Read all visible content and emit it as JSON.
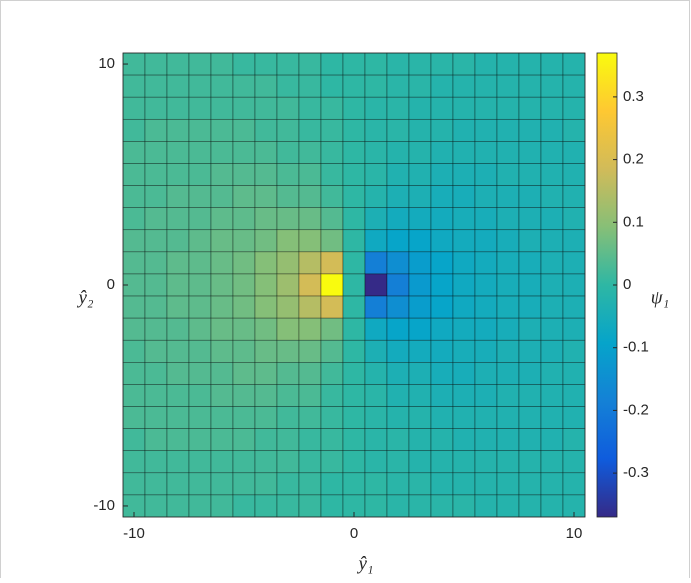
{
  "chart_data": {
    "type": "heatmap",
    "xlabel": "ŷ₁",
    "ylabel": "ŷ₂",
    "colorbar_label": "ψ₁",
    "x": [
      -10,
      -9,
      -8,
      -7,
      -6,
      -5,
      -4,
      -3,
      -2,
      -1,
      0,
      1,
      2,
      3,
      4,
      5,
      6,
      7,
      8,
      9,
      10
    ],
    "y": [
      10,
      9,
      8,
      7,
      6,
      5,
      4,
      3,
      2,
      1,
      0,
      -1,
      -2,
      -3,
      -4,
      -5,
      -6,
      -7,
      -8,
      -9,
      -10
    ],
    "z": [
      [
        0.02,
        0.02,
        0.02,
        0.02,
        0.02,
        0.01,
        0.01,
        0.01,
        0.01,
        0,
        0,
        0,
        -0.01,
        -0.01,
        -0.01,
        -0.01,
        -0.02,
        -0.02,
        -0.02,
        -0.02,
        -0.02
      ],
      [
        0.02,
        0.02,
        0.02,
        0.02,
        0.02,
        0.02,
        0.02,
        0.01,
        0.01,
        0,
        0,
        0,
        -0.01,
        -0.01,
        -0.02,
        -0.02,
        -0.02,
        -0.02,
        -0.02,
        -0.02,
        -0.02
      ],
      [
        0.02,
        0.02,
        0.02,
        0.02,
        0.02,
        0.02,
        0.02,
        0.02,
        0.01,
        0.01,
        0,
        -0.01,
        -0.01,
        -0.02,
        -0.02,
        -0.02,
        -0.02,
        -0.02,
        -0.02,
        -0.02,
        -0.02
      ],
      [
        0.02,
        0.03,
        0.03,
        0.03,
        0.03,
        0.03,
        0.02,
        0.02,
        0.01,
        0.01,
        0,
        -0.01,
        -0.01,
        -0.02,
        -0.02,
        -0.03,
        -0.03,
        -0.03,
        -0.03,
        -0.03,
        -0.02
      ],
      [
        0.03,
        0.03,
        0.03,
        0.03,
        0.03,
        0.03,
        0.03,
        0.02,
        0.02,
        0.01,
        0,
        -0.01,
        -0.02,
        -0.02,
        -0.03,
        -0.03,
        -0.03,
        -0.03,
        -0.03,
        -0.03,
        -0.03
      ],
      [
        0.03,
        0.03,
        0.03,
        0.03,
        0.04,
        0.04,
        0.04,
        0.03,
        0.03,
        0.01,
        0,
        -0.01,
        -0.03,
        -0.03,
        -0.04,
        -0.04,
        -0.04,
        -0.03,
        -0.03,
        -0.03,
        -0.03
      ],
      [
        0.03,
        0.03,
        0.04,
        0.04,
        0.04,
        0.05,
        0.05,
        0.04,
        0.04,
        0.02,
        0,
        -0.02,
        -0.04,
        -0.04,
        -0.05,
        -0.05,
        -0.04,
        -0.04,
        -0.04,
        -0.03,
        -0.03
      ],
      [
        0.03,
        0.04,
        0.04,
        0.04,
        0.05,
        0.05,
        0.06,
        0.06,
        0.06,
        0.04,
        0,
        -0.04,
        -0.06,
        -0.06,
        -0.06,
        -0.05,
        -0.05,
        -0.04,
        -0.04,
        -0.04,
        -0.03
      ],
      [
        0.04,
        0.04,
        0.04,
        0.05,
        0.06,
        0.06,
        0.07,
        0.09,
        0.09,
        0.07,
        0,
        -0.07,
        -0.09,
        -0.09,
        -0.07,
        -0.06,
        -0.06,
        -0.05,
        -0.04,
        -0.04,
        -0.04
      ],
      [
        0.04,
        0.04,
        0.05,
        0.05,
        0.06,
        0.07,
        0.09,
        0.11,
        0.15,
        0.19,
        0,
        -0.19,
        -0.15,
        -0.11,
        -0.09,
        -0.07,
        -0.06,
        -0.05,
        -0.05,
        -0.04,
        -0.04
      ],
      [
        0.04,
        0.04,
        0.05,
        0.05,
        0.06,
        0.07,
        0.09,
        0.12,
        0.19,
        0.37,
        0,
        -0.37,
        -0.19,
        -0.12,
        -0.09,
        -0.07,
        -0.06,
        -0.05,
        -0.05,
        -0.04,
        -0.04
      ],
      [
        0.04,
        0.04,
        0.05,
        0.05,
        0.06,
        0.07,
        0.09,
        0.11,
        0.15,
        0.19,
        0,
        -0.19,
        -0.15,
        -0.11,
        -0.09,
        -0.07,
        -0.06,
        -0.05,
        -0.05,
        -0.04,
        -0.04
      ],
      [
        0.04,
        0.04,
        0.04,
        0.05,
        0.06,
        0.06,
        0.07,
        0.09,
        0.09,
        0.07,
        0,
        -0.07,
        -0.09,
        -0.09,
        -0.07,
        -0.06,
        -0.06,
        -0.05,
        -0.04,
        -0.04,
        -0.04
      ],
      [
        0.03,
        0.04,
        0.04,
        0.04,
        0.05,
        0.05,
        0.06,
        0.06,
        0.06,
        0.04,
        0,
        -0.04,
        -0.06,
        -0.06,
        -0.06,
        -0.05,
        -0.05,
        -0.04,
        -0.04,
        -0.04,
        -0.03
      ],
      [
        0.03,
        0.03,
        0.04,
        0.04,
        0.04,
        0.05,
        0.05,
        0.04,
        0.04,
        0.02,
        0,
        -0.02,
        -0.04,
        -0.04,
        -0.05,
        -0.05,
        -0.04,
        -0.04,
        -0.04,
        -0.03,
        -0.03
      ],
      [
        0.03,
        0.03,
        0.03,
        0.03,
        0.04,
        0.04,
        0.04,
        0.03,
        0.03,
        0.01,
        0,
        -0.01,
        -0.03,
        -0.03,
        -0.04,
        -0.04,
        -0.04,
        -0.03,
        -0.03,
        -0.03,
        -0.03
      ],
      [
        0.03,
        0.03,
        0.03,
        0.03,
        0.03,
        0.03,
        0.03,
        0.02,
        0.02,
        0.01,
        0,
        -0.01,
        -0.02,
        -0.02,
        -0.03,
        -0.03,
        -0.03,
        -0.03,
        -0.03,
        -0.03,
        -0.03
      ],
      [
        0.02,
        0.03,
        0.03,
        0.03,
        0.03,
        0.03,
        0.02,
        0.02,
        0.01,
        0.01,
        0,
        -0.01,
        -0.01,
        -0.02,
        -0.02,
        -0.03,
        -0.03,
        -0.03,
        -0.03,
        -0.03,
        -0.02
      ],
      [
        0.02,
        0.02,
        0.02,
        0.02,
        0.02,
        0.02,
        0.02,
        0.02,
        0.01,
        0.01,
        0,
        -0.01,
        -0.01,
        -0.02,
        -0.02,
        -0.02,
        -0.02,
        -0.02,
        -0.02,
        -0.02,
        -0.02
      ],
      [
        0.02,
        0.02,
        0.02,
        0.02,
        0.02,
        0.02,
        0.02,
        0.01,
        0.01,
        0,
        0,
        0,
        -0.01,
        -0.01,
        -0.02,
        -0.02,
        -0.02,
        -0.02,
        -0.02,
        -0.02,
        -0.02
      ],
      [
        0.02,
        0.02,
        0.02,
        0.02,
        0.02,
        0.01,
        0.01,
        0.01,
        0.01,
        0,
        0,
        0,
        -0.01,
        -0.01,
        -0.01,
        -0.01,
        -0.02,
        -0.02,
        -0.02,
        -0.02,
        -0.02
      ]
    ],
    "xlim": [
      -10.5,
      10.5
    ],
    "ylim": [
      -10.5,
      10.5
    ],
    "xticks": [
      -10,
      0,
      10
    ],
    "yticks": [
      -10,
      0,
      10
    ],
    "clim": [
      -0.37,
      0.37
    ],
    "cticks": [
      -0.3,
      -0.2,
      -0.1,
      0,
      0.1,
      0.2,
      0.3
    ],
    "colormap": [
      "#352a87",
      "#0f5cdd",
      "#1481d6",
      "#06a4ca",
      "#2eb7a4",
      "#87bf77",
      "#d1bb59",
      "#fec832",
      "#f9fb0e"
    ]
  }
}
